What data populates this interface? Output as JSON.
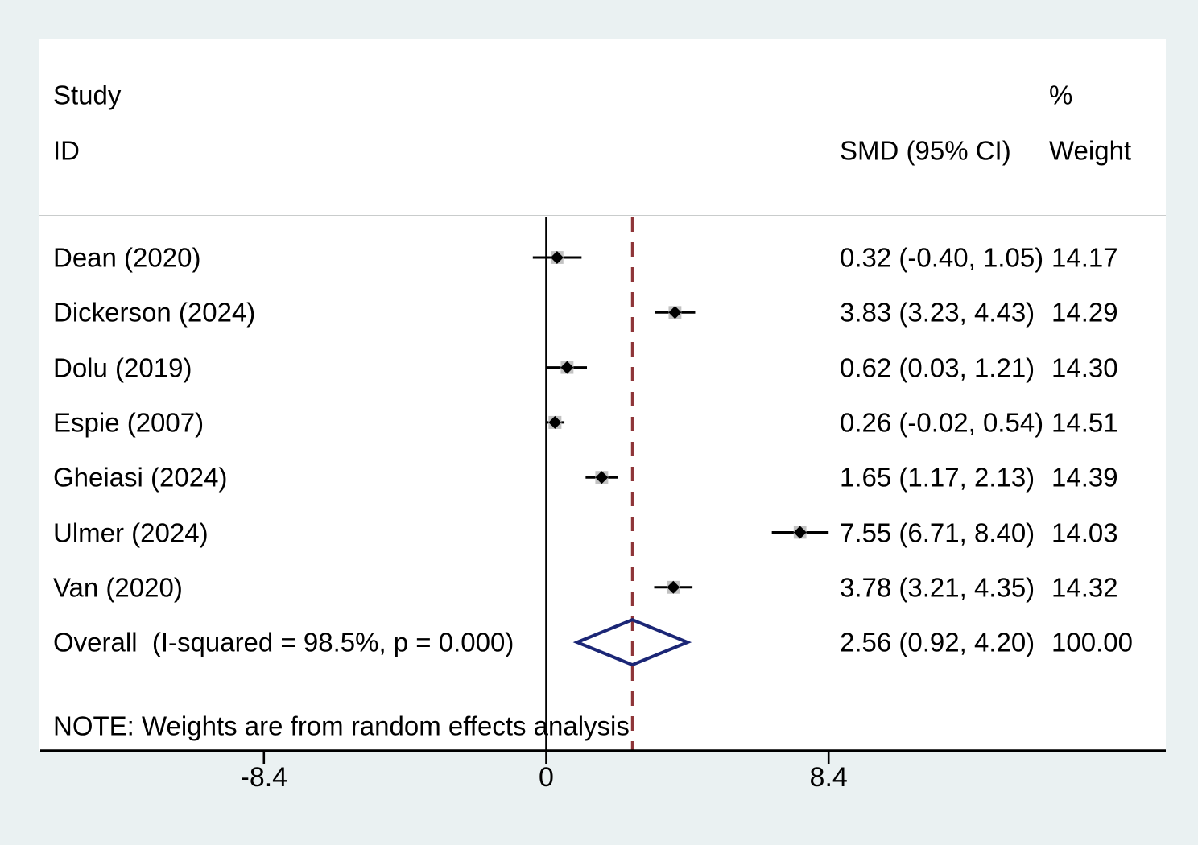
{
  "colors": {
    "background": "#eaf1f2",
    "panel": "#ffffff",
    "separator": "#c9cccc",
    "axis": "#000000",
    "null_line": "#000000",
    "ci_line": "#000000",
    "point_marker": "#000000",
    "weight_box": "#c2c2c2",
    "overall_dashed_line": "#8e3538",
    "overall_diamond_outline": "#1b2676"
  },
  "header": {
    "study_line1": "Study",
    "study_line2": "ID",
    "percent": "%",
    "smd_ci": "SMD (95% CI)",
    "weight": "Weight"
  },
  "chart_data": {
    "type": "forest",
    "effect_measure": "SMD",
    "x_ticks": [
      -8.4,
      0,
      8.4
    ],
    "x_tick_labels": [
      "-8.4",
      "0",
      "8.4"
    ],
    "xlim": [
      -8.4,
      8.4
    ],
    "null_line_x": 0,
    "overall_line_x": 2.56,
    "grid": false,
    "studies": [
      {
        "label": "Dean (2020)",
        "smd": 0.32,
        "ci_low": -0.4,
        "ci_high": 1.05,
        "weight": 14.17,
        "smd_ci_text": "0.32 (-0.40, 1.05)",
        "weight_text": "14.17"
      },
      {
        "label": "Dickerson (2024)",
        "smd": 3.83,
        "ci_low": 3.23,
        "ci_high": 4.43,
        "weight": 14.29,
        "smd_ci_text": "3.83 (3.23, 4.43)",
        "weight_text": "14.29"
      },
      {
        "label": "Dolu (2019)",
        "smd": 0.62,
        "ci_low": 0.03,
        "ci_high": 1.21,
        "weight": 14.3,
        "smd_ci_text": "0.62 (0.03, 1.21)",
        "weight_text": "14.30"
      },
      {
        "label": "Espie (2007)",
        "smd": 0.26,
        "ci_low": -0.02,
        "ci_high": 0.54,
        "weight": 14.51,
        "smd_ci_text": "0.26 (-0.02, 0.54)",
        "weight_text": "14.51"
      },
      {
        "label": "Gheiasi (2024)",
        "smd": 1.65,
        "ci_low": 1.17,
        "ci_high": 2.13,
        "weight": 14.39,
        "smd_ci_text": "1.65 (1.17, 2.13)",
        "weight_text": "14.39"
      },
      {
        "label": "Ulmer (2024)",
        "smd": 7.55,
        "ci_low": 6.71,
        "ci_high": 8.4,
        "weight": 14.03,
        "smd_ci_text": "7.55 (6.71, 8.40)",
        "weight_text": "14.03"
      },
      {
        "label": "Van (2020)",
        "smd": 3.78,
        "ci_low": 3.21,
        "ci_high": 4.35,
        "weight": 14.32,
        "smd_ci_text": "3.78 (3.21, 4.35)",
        "weight_text": "14.32"
      }
    ],
    "overall": {
      "label": "Overall  (I-squared = 98.5%, p = 0.000)",
      "smd": 2.56,
      "ci_low": 0.92,
      "ci_high": 4.2,
      "weight": 100.0,
      "smd_ci_text": "2.56 (0.92, 4.20)",
      "weight_text": "100.00"
    },
    "note": "NOTE: Weights are from random effects analysis"
  }
}
